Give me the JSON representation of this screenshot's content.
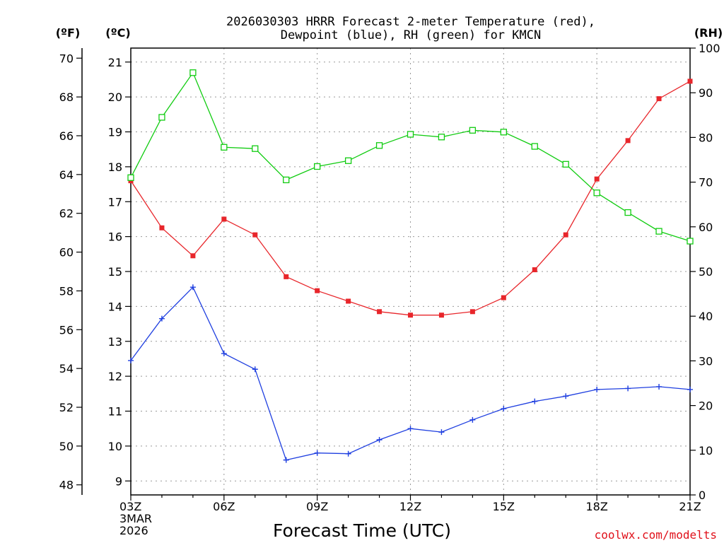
{
  "chart_data": {
    "type": "line",
    "title_line1": "2026030303 HRRR Forecast 2-meter Temperature (red),",
    "title_line2": "Dewpoint (blue), RH (green) for KMCN",
    "xlabel": "Forecast Time (UTC)",
    "credit": "coolwx.com/modelts",
    "unit_f": "(ºF)",
    "unit_c": "(ºC)",
    "unit_rh": "(RH)",
    "x_first_label": [
      "03Z",
      "3MAR",
      "2026"
    ],
    "x_tick_labels": [
      "06Z",
      "09Z",
      "12Z",
      "15Z",
      "18Z",
      "21Z"
    ],
    "x_hours": [
      3,
      4,
      5,
      6,
      7,
      8,
      9,
      10,
      11,
      12,
      13,
      14,
      15,
      16,
      17,
      18,
      19,
      20,
      21
    ],
    "yticks_f": [
      "48",
      "50",
      "52",
      "54",
      "56",
      "58",
      "60",
      "62",
      "64",
      "66",
      "68",
      "70"
    ],
    "yticks_c": [
      "9",
      "10",
      "11",
      "12",
      "13",
      "14",
      "15",
      "16",
      "17",
      "18",
      "19",
      "20",
      "21"
    ],
    "yticks_rh": [
      "0",
      "10",
      "20",
      "30",
      "40",
      "50",
      "60",
      "70",
      "80",
      "90",
      "100"
    ],
    "ylim_c": [
      8.6,
      21.4
    ],
    "ylim_rh": [
      0,
      100
    ],
    "grid": true,
    "colors": {
      "temperature": "#e8262b",
      "dewpoint": "#1f3fe0",
      "rh": "#11cc11"
    },
    "series": [
      {
        "name": "Temperature",
        "unit": "C",
        "marker": "filled-square",
        "values": [
          17.6,
          16.25,
          15.45,
          16.5,
          16.05,
          14.85,
          14.45,
          14.15,
          13.85,
          13.75,
          13.75,
          13.85,
          14.25,
          15.05,
          16.05,
          17.65,
          18.75,
          19.95,
          20.45
        ]
      },
      {
        "name": "Dewpoint",
        "unit": "C",
        "marker": "plus",
        "values": [
          12.45,
          13.65,
          14.55,
          12.65,
          12.2,
          9.6,
          9.8,
          9.78,
          10.18,
          10.5,
          10.4,
          10.75,
          11.07,
          11.28,
          11.43,
          11.62,
          11.65,
          11.7,
          11.62
        ]
      },
      {
        "name": "RH",
        "unit": "%",
        "marker": "open-square",
        "values": [
          71,
          84.5,
          94.5,
          77.8,
          77.5,
          70.5,
          73.5,
          74.8,
          78.2,
          80.7,
          80.1,
          81.6,
          81.2,
          78.0,
          74.0,
          67.6,
          63.2,
          59.0,
          56.8
        ]
      }
    ]
  }
}
